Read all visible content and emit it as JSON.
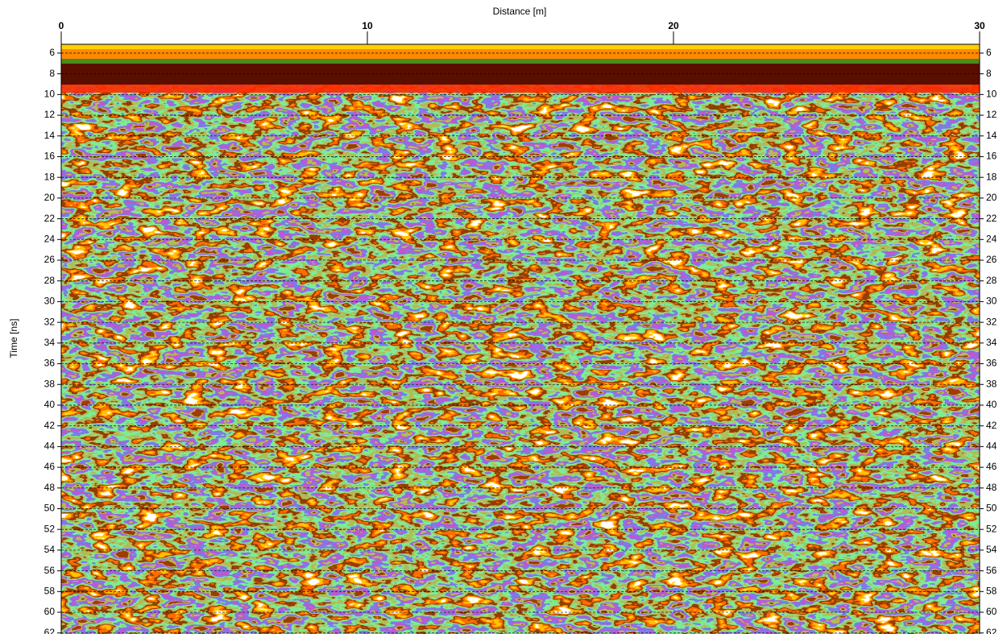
{
  "chart_data": {
    "type": "heatmap",
    "x_label": "Distance [m]",
    "y_label": "Time [ns]",
    "xlim": [
      0,
      30
    ],
    "xticks": [
      0,
      10,
      20,
      30
    ],
    "ylim": [
      5.15,
      62.1
    ],
    "yticks": [
      6,
      8,
      10,
      12,
      14,
      16,
      18,
      20,
      22,
      24,
      26,
      28,
      30,
      32,
      34,
      36,
      38,
      40,
      42,
      44,
      46,
      48,
      50,
      52,
      54,
      56,
      58,
      60,
      62
    ],
    "grid": true
  }
}
